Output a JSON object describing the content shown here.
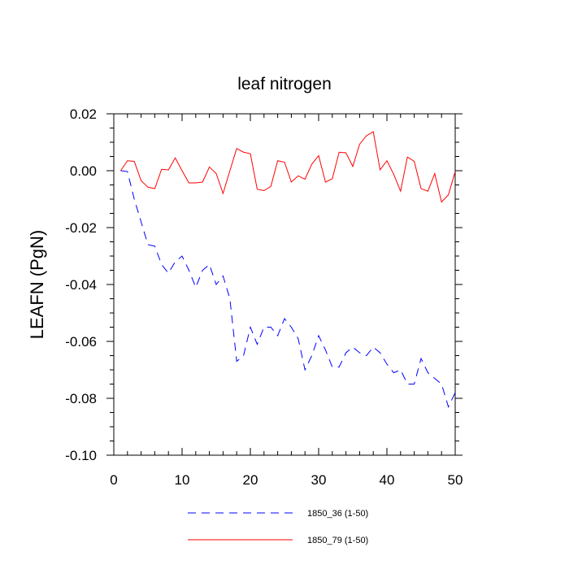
{
  "chart_data": {
    "type": "line",
    "title": "leaf nitrogen",
    "xlabel": "",
    "ylabel": "LEAFN  (PgN)",
    "xlim": [
      0,
      50
    ],
    "ylim": [
      -0.1,
      0.02
    ],
    "x_ticks": [
      0,
      10,
      20,
      30,
      40,
      50
    ],
    "x_tick_labels": [
      "0",
      "10",
      "20",
      "30",
      "40",
      "50"
    ],
    "y_ticks": [
      0.02,
      0.0,
      -0.02,
      -0.04,
      -0.06,
      -0.08,
      -0.1
    ],
    "y_tick_labels": [
      "0.02",
      "0.00",
      "-0.02",
      "-0.04",
      "-0.06",
      "-0.08",
      "-0.10"
    ],
    "x": [
      1,
      2,
      3,
      4,
      5,
      6,
      7,
      8,
      9,
      10,
      11,
      12,
      13,
      14,
      15,
      16,
      17,
      18,
      19,
      20,
      21,
      22,
      23,
      24,
      25,
      26,
      27,
      28,
      29,
      30,
      31,
      32,
      33,
      34,
      35,
      36,
      37,
      38,
      39,
      40,
      41,
      42,
      43,
      44,
      45,
      46,
      47,
      48,
      49,
      50
    ],
    "series": [
      {
        "name": "1850_36 (1-50)",
        "color": "#0000ff",
        "dash": "dashed",
        "values": [
          0.0,
          -0.0003,
          -0.01,
          -0.018,
          -0.026,
          -0.0265,
          -0.033,
          -0.036,
          -0.032,
          -0.03,
          -0.035,
          -0.041,
          -0.035,
          -0.033,
          -0.04,
          -0.037,
          -0.045,
          -0.067,
          -0.065,
          -0.055,
          -0.061,
          -0.055,
          -0.055,
          -0.058,
          -0.052,
          -0.055,
          -0.059,
          -0.07,
          -0.065,
          -0.058,
          -0.063,
          -0.069,
          -0.069,
          -0.064,
          -0.062,
          -0.064,
          -0.065,
          -0.062,
          -0.064,
          -0.068,
          -0.071,
          -0.07,
          -0.075,
          -0.075,
          -0.066,
          -0.071,
          -0.073,
          -0.075,
          -0.083,
          -0.078
        ]
      },
      {
        "name": "1850_79 (1-50)",
        "color": "#ff0000",
        "dash": "solid",
        "values": [
          0.0,
          0.0035,
          0.0033,
          -0.0035,
          -0.0058,
          -0.0063,
          0.0005,
          0.0003,
          0.0045,
          0.0,
          -0.0043,
          -0.0043,
          -0.004,
          0.0013,
          -0.001,
          -0.008,
          0.0,
          0.0078,
          0.0065,
          0.006,
          -0.0065,
          -0.007,
          -0.0055,
          0.0035,
          0.003,
          -0.004,
          -0.0018,
          -0.003,
          0.0023,
          0.0053,
          -0.004,
          -0.0028,
          0.0065,
          0.0063,
          0.0015,
          0.0093,
          0.0123,
          0.0137,
          0.0003,
          0.0035,
          -0.0013,
          -0.0072,
          0.0048,
          0.0033,
          -0.0063,
          -0.0072,
          -0.001,
          -0.011,
          -0.0085,
          -0.0003
        ]
      }
    ],
    "legend_position": "bottom-center"
  }
}
